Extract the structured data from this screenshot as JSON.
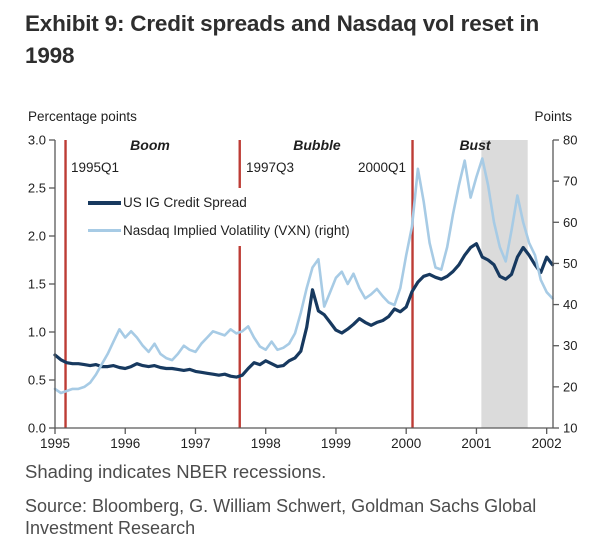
{
  "title": "Exhibit 9: Credit spreads and Nasdaq vol reset in 1998",
  "caption": "Shading indicates NBER recessions.",
  "source": "Source: Bloomberg, G. William Schwert, Goldman Sachs Global Investment Research",
  "colors": {
    "credit_spread": "#17395f",
    "vxn": "#a7cbe5",
    "event_line": "#bd3c35",
    "recession_band": "#dbdbdb",
    "axis": "#595959",
    "tick_text": "#1f1f1f"
  },
  "legend": [
    {
      "label": "US IG Credit Spread"
    },
    {
      "label": "Nasdaq Implied Volatility (VXN) (right)"
    }
  ],
  "chart_data": {
    "type": "line",
    "title": "Credit spreads and Nasdaq vol reset in 1998",
    "left_axis": {
      "label": "Percentage points",
      "min": 0.0,
      "max": 3.0,
      "ticks": [
        "3.0",
        "2.5",
        "2.0",
        "1.5",
        "1.0",
        "0.5",
        "0.0"
      ]
    },
    "right_axis": {
      "label": "Points",
      "min": 10,
      "max": 80,
      "ticks": [
        "80",
        "70",
        "60",
        "50",
        "40",
        "30",
        "20",
        "10"
      ]
    },
    "x_axis": {
      "min": 1995,
      "max": 2002.09,
      "ticks": [
        1995,
        1996,
        1997,
        1998,
        1999,
        2000,
        2001,
        2002
      ]
    },
    "grid": false,
    "phase_labels": [
      {
        "text": "Boom"
      },
      {
        "text": "Bubble"
      },
      {
        "text": "Bust"
      }
    ],
    "event_lines": [
      {
        "label": "1995Q1",
        "x": 1995.15
      },
      {
        "label": "1997Q3",
        "x": 1997.63
      },
      {
        "label": "2000Q1",
        "x": 2000.09
      }
    ],
    "recessions": [
      {
        "start": 2001.07,
        "end": 2001.73
      }
    ],
    "series": [
      {
        "name": "US IG Credit Spread",
        "axis": "left",
        "units": "percentage points",
        "color": "#17395f",
        "width": 3.2,
        "x_start": 1995.0,
        "x_step": 0.08333,
        "values": [
          0.76,
          0.71,
          0.68,
          0.67,
          0.67,
          0.66,
          0.65,
          0.66,
          0.64,
          0.64,
          0.65,
          0.63,
          0.62,
          0.64,
          0.67,
          0.65,
          0.64,
          0.65,
          0.63,
          0.62,
          0.62,
          0.61,
          0.6,
          0.61,
          0.59,
          0.58,
          0.57,
          0.56,
          0.55,
          0.56,
          0.54,
          0.53,
          0.55,
          0.62,
          0.68,
          0.66,
          0.7,
          0.67,
          0.64,
          0.65,
          0.7,
          0.73,
          0.8,
          1.05,
          1.44,
          1.22,
          1.18,
          1.1,
          1.02,
          0.99,
          1.03,
          1.08,
          1.14,
          1.1,
          1.07,
          1.1,
          1.12,
          1.16,
          1.24,
          1.21,
          1.26,
          1.42,
          1.52,
          1.58,
          1.6,
          1.57,
          1.55,
          1.58,
          1.63,
          1.7,
          1.8,
          1.88,
          1.92,
          1.78,
          1.75,
          1.7,
          1.58,
          1.55,
          1.6,
          1.78,
          1.88,
          1.8,
          1.7,
          1.62,
          1.78,
          1.7
        ]
      },
      {
        "name": "Nasdaq Implied Volatility (VXN) (right)",
        "axis": "right",
        "units": "points",
        "color": "#a7cbe5",
        "width": 2.6,
        "x_start": 1995.0,
        "x_step": 0.08333,
        "values": [
          19.5,
          18.5,
          19,
          19.5,
          19.5,
          20,
          21,
          23,
          25.5,
          28,
          31,
          34,
          32,
          33.5,
          32,
          30,
          28.5,
          30.5,
          28,
          27,
          26.5,
          28,
          30,
          29,
          28.5,
          30.5,
          32,
          33.5,
          33,
          32.5,
          34,
          33,
          33.5,
          34.7,
          32,
          29.8,
          29,
          31,
          29,
          29.5,
          30.5,
          33,
          38,
          44,
          49,
          51,
          39.5,
          43,
          46.5,
          48,
          45,
          47.5,
          44,
          41.5,
          42.5,
          43.8,
          42,
          40.5,
          39.9,
          44,
          52,
          59,
          73,
          65,
          55,
          49,
          48.5,
          54,
          62,
          69,
          75,
          66,
          71,
          75.5,
          69,
          60,
          54,
          50.5,
          58,
          66.5,
          60,
          55,
          52,
          46,
          43,
          41.5
        ]
      }
    ]
  }
}
